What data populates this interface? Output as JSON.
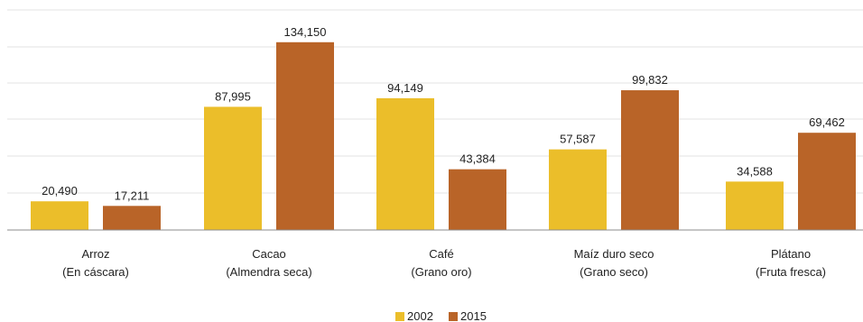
{
  "chart_data": {
    "type": "bar",
    "categories": [
      [
        "Arroz",
        "(En cáscara)"
      ],
      [
        "Cacao",
        "(Almendra seca)"
      ],
      [
        "Café",
        "(Grano oro)"
      ],
      [
        "Maíz duro seco",
        "(Grano seco)"
      ],
      [
        "Plátano",
        "(Fruta fresca)"
      ]
    ],
    "series": [
      {
        "name": "2002",
        "color": "#EBBE2A",
        "values": [
          20490,
          87995,
          94149,
          57587,
          34588
        ],
        "labels": [
          "20,490",
          "87,995",
          "94,149",
          "57,587",
          "34,588"
        ]
      },
      {
        "name": "2015",
        "color": "#B96428",
        "values": [
          17211,
          134150,
          43384,
          99832,
          69462
        ],
        "labels": [
          "17,211",
          "134,150",
          "43,384",
          "99,832",
          "69,462"
        ]
      }
    ],
    "grid": true,
    "legend": "bottom-center",
    "title": "",
    "xlabel": "",
    "ylabel": ""
  }
}
